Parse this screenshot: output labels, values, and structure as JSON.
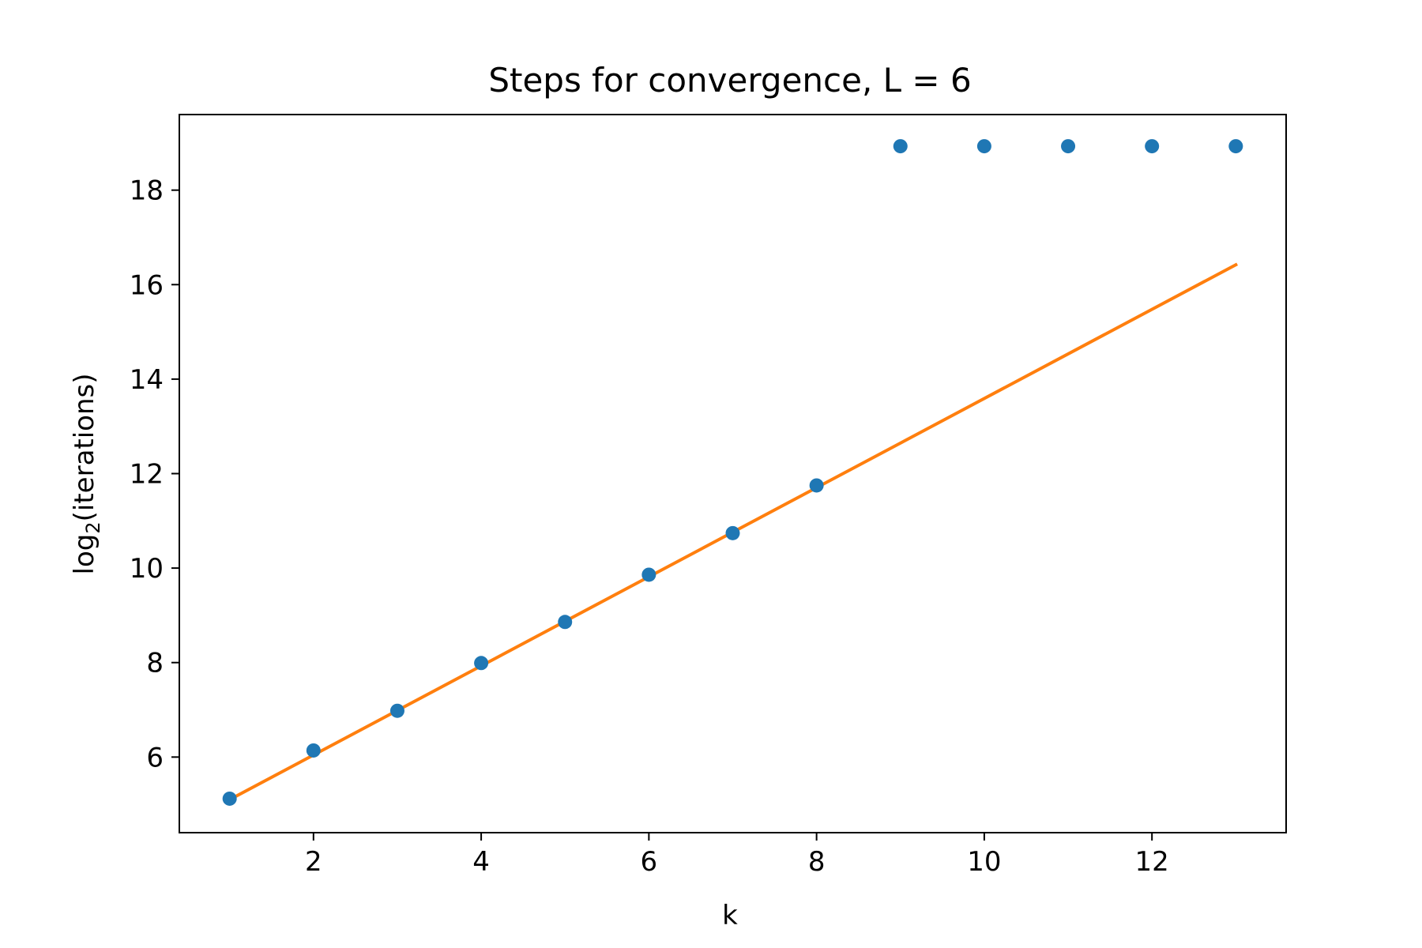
{
  "chart_data": {
    "type": "scatter",
    "title": "Steps for convergence, L = 6",
    "xlabel": "k",
    "ylabel": {
      "base": "log",
      "subscript": "2",
      "rest": "(iterations)"
    },
    "xlim": [
      0.4,
      13.6
    ],
    "ylim": [
      4.4,
      19.6
    ],
    "xticks": [
      2,
      4,
      6,
      8,
      10,
      12
    ],
    "yticks": [
      6,
      8,
      10,
      12,
      14,
      16,
      18
    ],
    "grid": false,
    "series": [
      {
        "type": "scatter",
        "color": "#1f77b4",
        "x": [
          1,
          2,
          3,
          4,
          5,
          6,
          7,
          8,
          9,
          10,
          11,
          12,
          13
        ],
        "y": [
          5.12,
          6.14,
          6.98,
          7.99,
          8.86,
          9.86,
          10.74,
          11.75,
          18.93,
          18.93,
          18.93,
          18.93,
          18.93
        ]
      },
      {
        "type": "line",
        "color": "#ff7f0e",
        "x": [
          1,
          13
        ],
        "y": [
          5.1,
          16.42
        ]
      }
    ]
  }
}
